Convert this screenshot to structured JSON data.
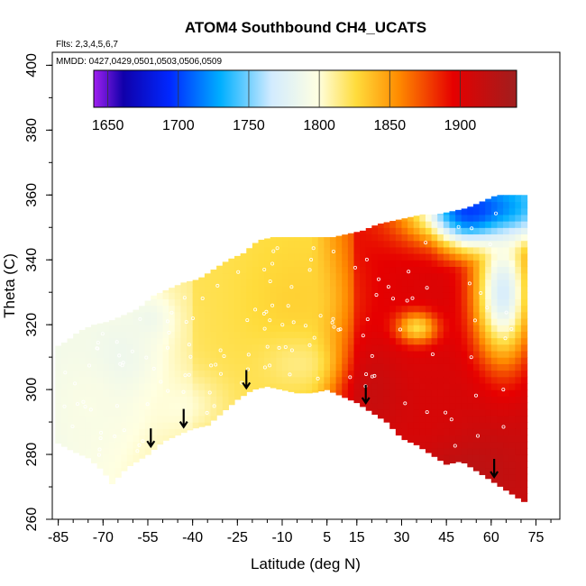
{
  "chart_data": {
    "type": "heatmap",
    "title": "ATOM4 Southbound CH4_UCATS",
    "subtitle_flights": "Flts: 2,3,4,5,6,7",
    "subtitle_dates": "MMDD: 0427,0429,0501,0503,0506,0509",
    "xlabel": "Latitude (deg N)",
    "ylabel": "Theta (C)",
    "xlim": [
      -87,
      83
    ],
    "ylim": [
      260,
      404
    ],
    "x_ticks": [
      -85,
      -70,
      -55,
      -40,
      -25,
      -10,
      5,
      15,
      30,
      45,
      60,
      75
    ],
    "x_tick_labels": [
      "-85",
      "-70",
      "-55",
      "-40",
      "-25",
      "-10",
      "5",
      "15",
      "30",
      "45",
      "60",
      "75"
    ],
    "y_ticks": [
      260,
      280,
      300,
      320,
      340,
      360,
      380,
      400
    ],
    "y_tick_labels": [
      "260",
      "280",
      "300",
      "320",
      "340",
      "360",
      "380",
      "400"
    ],
    "colorbar": {
      "min": 1640,
      "max": 1940,
      "ticks": [
        1650,
        1700,
        1750,
        1800,
        1850,
        1900
      ],
      "tick_labels": [
        "1650",
        "1700",
        "1750",
        "1800",
        "1850",
        "1900"
      ]
    },
    "arrows_latitude": [
      -54,
      -43,
      -22,
      18,
      61
    ],
    "surface_top_theta": [
      [
        -86,
        284
      ],
      [
        -80,
        281
      ],
      [
        -75,
        279
      ],
      [
        -70,
        275
      ],
      [
        -67,
        271
      ],
      [
        -62,
        276
      ],
      [
        -55,
        280
      ],
      [
        -50,
        284
      ],
      [
        -45,
        286
      ],
      [
        -40,
        288
      ],
      [
        -35,
        289
      ],
      [
        -30,
        293
      ],
      [
        -25,
        297
      ],
      [
        -20,
        300
      ],
      [
        -15,
        301
      ],
      [
        -10,
        300
      ],
      [
        -5,
        299
      ],
      [
        0,
        299
      ],
      [
        5,
        300
      ],
      [
        10,
        298
      ],
      [
        15,
        296
      ],
      [
        20,
        293
      ],
      [
        25,
        290
      ],
      [
        30,
        285
      ],
      [
        35,
        283
      ],
      [
        40,
        280
      ],
      [
        45,
        277
      ],
      [
        50,
        278
      ],
      [
        55,
        275
      ],
      [
        60,
        272
      ],
      [
        65,
        269
      ],
      [
        70,
        266
      ],
      [
        72,
        265
      ]
    ],
    "ceiling_theta": [
      [
        -86,
        313
      ],
      [
        -82,
        315
      ],
      [
        -78,
        318
      ],
      [
        -73,
        320
      ],
      [
        -68,
        321
      ],
      [
        -63,
        323
      ],
      [
        -58,
        325
      ],
      [
        -53,
        329
      ],
      [
        -48,
        331
      ],
      [
        -43,
        333
      ],
      [
        -38,
        334
      ],
      [
        -33,
        337
      ],
      [
        -28,
        340
      ],
      [
        -23,
        342
      ],
      [
        -18,
        346
      ],
      [
        -13,
        347
      ],
      [
        -8,
        347
      ],
      [
        -3,
        347
      ],
      [
        2,
        347
      ],
      [
        7,
        347
      ],
      [
        12,
        348
      ],
      [
        17,
        349
      ],
      [
        22,
        351
      ],
      [
        27,
        352
      ],
      [
        32,
        353
      ],
      [
        37,
        354
      ],
      [
        42,
        354
      ],
      [
        47,
        355
      ],
      [
        52,
        356
      ],
      [
        57,
        358
      ],
      [
        62,
        360
      ],
      [
        67,
        360
      ]
    ],
    "right_edge_theta_min": 265,
    "right_edge_latitude": 72,
    "features": [
      {
        "lat": 57,
        "theta": 355,
        "value": 1690,
        "lat_width": 22,
        "theta_width": 10
      },
      {
        "lat": 64,
        "theta": 330,
        "value": 1770,
        "lat_width": 10,
        "theta_width": 22
      },
      {
        "lat": 35,
        "theta": 319,
        "value": 1820,
        "lat_width": 7,
        "theta_width": 5
      },
      {
        "lat": 50,
        "theta": 275,
        "value": 1925,
        "lat_width": 20,
        "theta_width": 15
      },
      {
        "lat": 35,
        "theta": 293,
        "value": 1905,
        "lat_width": 20,
        "theta_width": 15
      },
      {
        "lat": 20,
        "theta": 300,
        "value": 1915,
        "lat_width": 10,
        "theta_width": 15
      },
      {
        "lat": -65,
        "theta": 308,
        "value": 1785,
        "lat_width": 15,
        "theta_width": 18
      },
      {
        "lat": -75,
        "theta": 295,
        "value": 1795,
        "lat_width": 12,
        "theta_width": 15
      },
      {
        "lat": -55,
        "theta": 322,
        "value": 1788,
        "lat_width": 8,
        "theta_width": 7
      },
      {
        "lat": -45,
        "theta": 295,
        "value": 1800,
        "lat_width": 15,
        "theta_width": 10
      },
      {
        "lat": -5,
        "theta": 328,
        "value": 1830,
        "lat_width": 15,
        "theta_width": 15
      },
      {
        "lat": -5,
        "theta": 308,
        "value": 1815,
        "lat_width": 12,
        "theta_width": 8
      }
    ]
  }
}
